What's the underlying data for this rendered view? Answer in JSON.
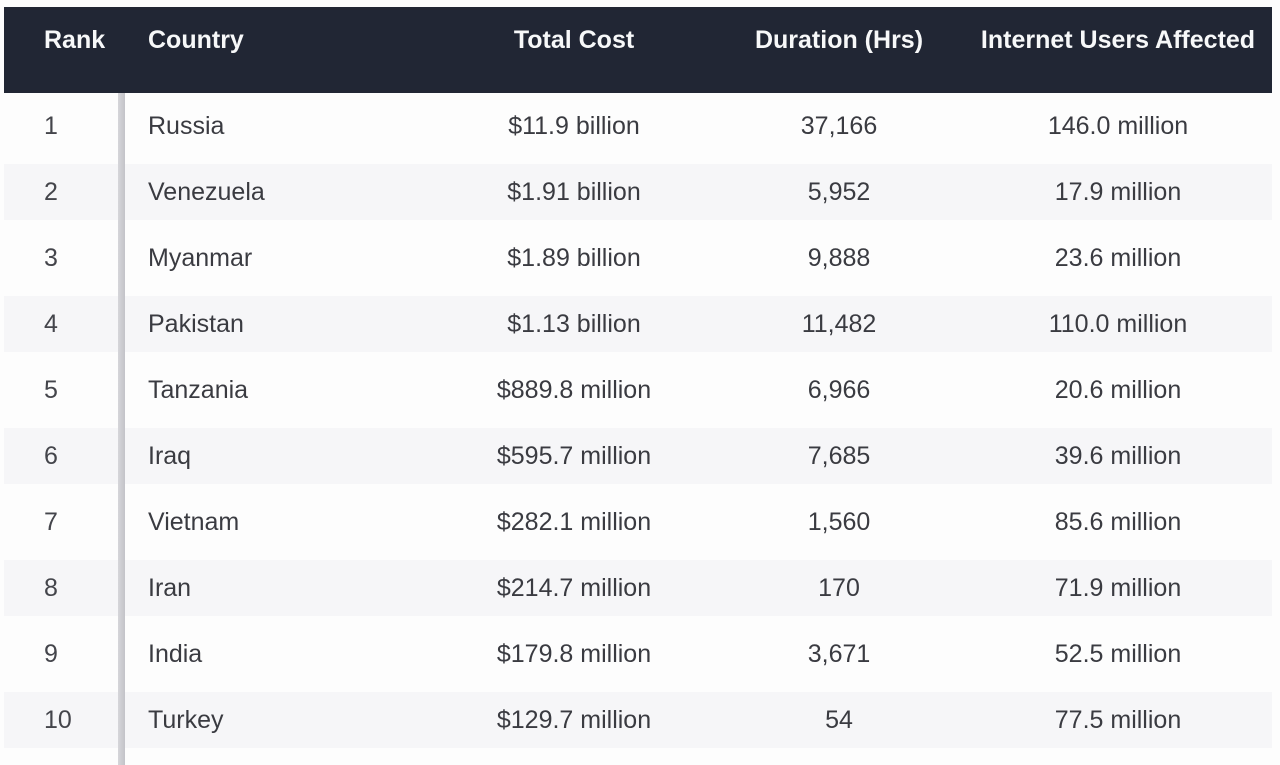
{
  "accent_colors": {
    "header_background": "#212634",
    "header_text": "#f7f8f9",
    "even_row_background": "#f6f6f8",
    "divider": "#c6c6ca",
    "body_text": "#3a3b41"
  },
  "table": {
    "columns": [
      {
        "key": "rank",
        "label": "Rank"
      },
      {
        "key": "country",
        "label": "Country"
      },
      {
        "key": "cost",
        "label": "Total Cost"
      },
      {
        "key": "hours",
        "label": "Duration (Hrs)"
      },
      {
        "key": "users",
        "label": "Internet Users Affected"
      }
    ],
    "rows": [
      {
        "rank": "1",
        "country": "Russia",
        "cost": "$11.9 billion",
        "hours": "37,166",
        "users": "146.0 million"
      },
      {
        "rank": "2",
        "country": "Venezuela",
        "cost": "$1.91 billion",
        "hours": "5,952",
        "users": "17.9 million"
      },
      {
        "rank": "3",
        "country": "Myanmar",
        "cost": "$1.89 billion",
        "hours": "9,888",
        "users": "23.6 million"
      },
      {
        "rank": "4",
        "country": "Pakistan",
        "cost": "$1.13 billion",
        "hours": "11,482",
        "users": "110.0 million"
      },
      {
        "rank": "5",
        "country": "Tanzania",
        "cost": "$889.8 million",
        "hours": "6,966",
        "users": "20.6 million"
      },
      {
        "rank": "6",
        "country": "Iraq",
        "cost": "$595.7 million",
        "hours": "7,685",
        "users": "39.6 million"
      },
      {
        "rank": "7",
        "country": "Vietnam",
        "cost": "$282.1 million",
        "hours": "1,560",
        "users": "85.6 million"
      },
      {
        "rank": "8",
        "country": "Iran",
        "cost": "$214.7 million",
        "hours": "170",
        "users": "71.9 million"
      },
      {
        "rank": "9",
        "country": "India",
        "cost": "$179.8 million",
        "hours": "3,671",
        "users": "52.5 million"
      },
      {
        "rank": "10",
        "country": "Turkey",
        "cost": "$129.7 million",
        "hours": "54",
        "users": "77.5 million"
      }
    ]
  },
  "chart_data": {
    "type": "table",
    "title": "",
    "columns": [
      "Rank",
      "Country",
      "Total Cost",
      "Duration (Hrs)",
      "Internet Users Affected"
    ],
    "rows": [
      [
        1,
        "Russia",
        "$11.9 billion",
        37166,
        "146.0 million"
      ],
      [
        2,
        "Venezuela",
        "$1.91 billion",
        5952,
        "17.9 million"
      ],
      [
        3,
        "Myanmar",
        "$1.89 billion",
        9888,
        "23.6 million"
      ],
      [
        4,
        "Pakistan",
        "$1.13 billion",
        11482,
        "110.0 million"
      ],
      [
        5,
        "Tanzania",
        "$889.8 million",
        6966,
        "20.6 million"
      ],
      [
        6,
        "Iraq",
        "$595.7 million",
        7685,
        "39.6 million"
      ],
      [
        7,
        "Vietnam",
        "$282.1 million",
        1560,
        "85.6 million"
      ],
      [
        8,
        "Iran",
        "$214.7 million",
        170,
        "71.9 million"
      ],
      [
        9,
        "India",
        "$179.8 million",
        3671,
        "52.5 million"
      ],
      [
        10,
        "Turkey",
        "$129.7 million",
        54,
        "77.5 million"
      ]
    ]
  }
}
